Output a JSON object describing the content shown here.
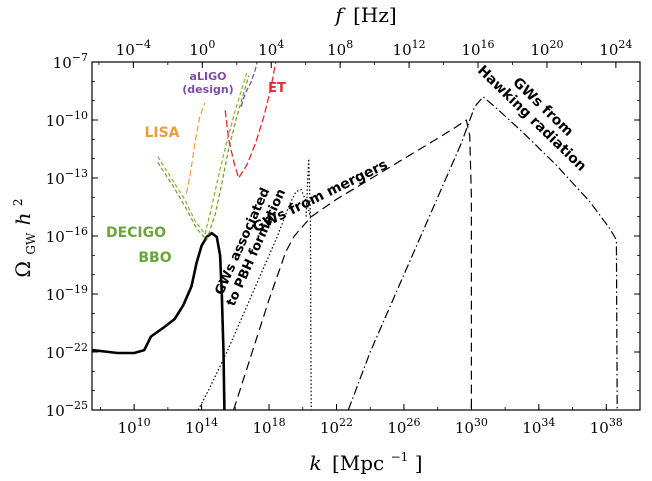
{
  "chart_data": {
    "type": "line",
    "title": "",
    "xlabel": {
      "symbol": "k",
      "unit": "[Mpc",
      "unit_exp": "−1",
      "close": "]"
    },
    "ylabel": {
      "symbol": "Ω",
      "sub": "GW",
      "h": "h",
      "exp": "2"
    },
    "x2label": {
      "symbol": "f",
      "unit": "[Hz]"
    },
    "x_scale": "log",
    "y_scale": "log",
    "xlim_log10": [
      7.5,
      40
    ],
    "ylim_log10": [
      -25,
      -7
    ],
    "x2lim_log10": [
      -6.4,
      25.4
    ],
    "xticks": [
      {
        "base": "10",
        "exp": "10",
        "v": 10
      },
      {
        "base": "10",
        "exp": "14",
        "v": 14
      },
      {
        "base": "10",
        "exp": "18",
        "v": 18
      },
      {
        "base": "10",
        "exp": "22",
        "v": 22
      },
      {
        "base": "10",
        "exp": "26",
        "v": 26
      },
      {
        "base": "10",
        "exp": "30",
        "v": 30
      },
      {
        "base": "10",
        "exp": "34",
        "v": 34
      },
      {
        "base": "10",
        "exp": "38",
        "v": 38
      }
    ],
    "yticks": [
      {
        "base": "10",
        "exp": "−7",
        "v": -7
      },
      {
        "base": "10",
        "exp": "−10",
        "v": -10
      },
      {
        "base": "10",
        "exp": "−13",
        "v": -13
      },
      {
        "base": "10",
        "exp": "−16",
        "v": -16
      },
      {
        "base": "10",
        "exp": "−19",
        "v": -19
      },
      {
        "base": "10",
        "exp": "−22",
        "v": -22
      },
      {
        "base": "10",
        "exp": "−25",
        "v": -25
      }
    ],
    "x2ticks": [
      {
        "base": "10",
        "exp": "−4",
        "v": -4
      },
      {
        "base": "10",
        "exp": "0",
        "v": 0
      },
      {
        "base": "10",
        "exp": "4",
        "v": 4
      },
      {
        "base": "10",
        "exp": "8",
        "v": 8
      },
      {
        "base": "10",
        "exp": "12",
        "v": 12
      },
      {
        "base": "10",
        "exp": "16",
        "v": 16
      },
      {
        "base": "10",
        "exp": "20",
        "v": 20
      },
      {
        "base": "10",
        "exp": "24",
        "v": 24
      }
    ],
    "series": [
      {
        "id": "induced-spectrum",
        "color": "#000000",
        "width": 2.6,
        "dash": "",
        "points_log10": [
          [
            7.5,
            -21.9
          ],
          [
            8.5,
            -22
          ],
          [
            9,
            -22.05
          ],
          [
            10,
            -22.05
          ],
          [
            10.6,
            -21.9
          ],
          [
            11,
            -21.2
          ],
          [
            11.8,
            -20.7
          ],
          [
            12.4,
            -20.3
          ],
          [
            12.9,
            -19.6
          ],
          [
            13.4,
            -18.6
          ],
          [
            13.7,
            -17.4
          ],
          [
            14,
            -16.5
          ],
          [
            14.3,
            -16.05
          ],
          [
            14.6,
            -15.85
          ],
          [
            14.9,
            -16.05
          ],
          [
            15.1,
            -17
          ],
          [
            15.2,
            -19
          ],
          [
            15.3,
            -22
          ],
          [
            15.35,
            -25
          ]
        ]
      },
      {
        "id": "gw-pbh-formation",
        "color": "#000000",
        "width": 1.2,
        "dash": "1.5,2.2",
        "points_log10": [
          [
            13.8,
            -25
          ],
          [
            14.4,
            -24
          ],
          [
            15.5,
            -22
          ],
          [
            16.5,
            -20
          ],
          [
            17.5,
            -18
          ],
          [
            18.5,
            -16
          ],
          [
            19.2,
            -14.4
          ],
          [
            19.6,
            -13.7
          ],
          [
            19.9,
            -13.6
          ],
          [
            20.2,
            -14.2
          ],
          [
            20.45,
            -15
          ],
          [
            20.5,
            -25
          ]
        ]
      },
      {
        "id": "gw-pbh-formation-spike",
        "color": "#000000",
        "width": 1.2,
        "dash": "1.5,2.2",
        "points_log10": [
          [
            20.2,
            -15
          ],
          [
            20.35,
            -12
          ],
          [
            20.45,
            -15
          ]
        ]
      },
      {
        "id": "gw-mergers",
        "color": "#000000",
        "width": 1.2,
        "dash": "9,5",
        "points_log10": [
          [
            15.9,
            -25
          ],
          [
            17,
            -22
          ],
          [
            18,
            -19.3
          ],
          [
            19,
            -16.8
          ],
          [
            19.5,
            -16
          ],
          [
            20.5,
            -15
          ],
          [
            22,
            -14.1
          ],
          [
            24,
            -13.05
          ],
          [
            26,
            -12
          ],
          [
            28,
            -10.95
          ],
          [
            29.2,
            -10.3
          ],
          [
            29.7,
            -10
          ],
          [
            29.9,
            -10.8
          ],
          [
            30,
            -14
          ],
          [
            30,
            -25
          ]
        ]
      },
      {
        "id": "gw-hawking-radiation",
        "color": "#000000",
        "width": 1.2,
        "dash": "9,3,1.5,3",
        "points_log10": [
          [
            22.7,
            -25
          ],
          [
            24,
            -22
          ],
          [
            26,
            -18
          ],
          [
            28,
            -14
          ],
          [
            29.4,
            -11.2
          ],
          [
            30.2,
            -9.3
          ],
          [
            30.7,
            -8.8
          ],
          [
            31.5,
            -9.4
          ],
          [
            33,
            -10.6
          ],
          [
            35,
            -12.3
          ],
          [
            37,
            -14.2
          ],
          [
            38.2,
            -15.6
          ],
          [
            38.6,
            -16.2
          ],
          [
            38.65,
            -25
          ]
        ]
      },
      {
        "id": "lisa-sensitivity",
        "color": "#F39A3C",
        "width": 1.2,
        "dash": "6,3",
        "points_log10": [
          [
            13.1,
            -13.8
          ],
          [
            13.35,
            -12.7
          ],
          [
            13.6,
            -11.2
          ],
          [
            13.9,
            -9.8
          ],
          [
            14.2,
            -9.1
          ]
        ]
      },
      {
        "id": "decigo-sensitivity",
        "color": "#8DB83E",
        "width": 1.3,
        "dash": "4,2.5",
        "points_log10": [
          [
            11.4,
            -11.9
          ],
          [
            12.2,
            -13
          ],
          [
            13,
            -14.1
          ],
          [
            13.6,
            -15.2
          ],
          [
            14.2,
            -15.9
          ],
          [
            14.6,
            -14.5
          ],
          [
            15,
            -12.9
          ],
          [
            15.5,
            -11.1
          ],
          [
            16,
            -9.5
          ],
          [
            16.7,
            -7.5
          ]
        ]
      },
      {
        "id": "bbo-sensitivity",
        "color": "#7AA332",
        "width": 1.3,
        "dash": "4,2.5",
        "points_log10": [
          [
            11.4,
            -12.2
          ],
          [
            12.3,
            -13.4
          ],
          [
            13.1,
            -14.6
          ],
          [
            13.7,
            -15.6
          ],
          [
            14.3,
            -16.2
          ],
          [
            14.8,
            -14.9
          ],
          [
            15.2,
            -13.3
          ],
          [
            15.6,
            -11.5
          ],
          [
            16.1,
            -9.8
          ],
          [
            16.8,
            -7.7
          ]
        ]
      },
      {
        "id": "aligo-sensitivity",
        "color": "#7F4BA8",
        "width": 1.3,
        "dash": "5,2.5",
        "points_log10": [
          [
            16.35,
            -9.3
          ],
          [
            16.6,
            -8.6
          ],
          [
            16.9,
            -8.1
          ],
          [
            17.15,
            -7.5
          ],
          [
            17.3,
            -7
          ]
        ]
      },
      {
        "id": "et-sensitivity",
        "color": "#E5292E",
        "width": 1.3,
        "dash": "7,3",
        "points_log10": [
          [
            15.4,
            -9.5
          ],
          [
            15.6,
            -11
          ],
          [
            15.95,
            -12.3
          ],
          [
            16.2,
            -13
          ],
          [
            16.7,
            -12.3
          ],
          [
            17.2,
            -11.2
          ],
          [
            17.7,
            -9.8
          ],
          [
            18.1,
            -8.4
          ],
          [
            18.4,
            -7
          ]
        ]
      }
    ],
    "annotations": [
      {
        "id": "label-aligo",
        "line1": "aLIGO",
        "line2": "(design)",
        "color": "#7F4BA8"
      },
      {
        "id": "label-et",
        "text": "ET",
        "color": "#E5292E"
      },
      {
        "id": "label-lisa",
        "text": "LISA",
        "color": "#F39A3C"
      },
      {
        "id": "label-decigo",
        "text": "DECIGO",
        "color": "#6BA539"
      },
      {
        "id": "label-bbo",
        "text": "BBO",
        "color": "#6BA539"
      },
      {
        "id": "label-pbh-formation",
        "line1": "GWs associated",
        "line2": "to PBH formation",
        "color": "#000000"
      },
      {
        "id": "label-mergers",
        "text": "GWs from mergers",
        "color": "#000000"
      },
      {
        "id": "label-hawking",
        "line1": "GWs from",
        "line2": "Hawking radiation",
        "color": "#000000"
      }
    ]
  }
}
